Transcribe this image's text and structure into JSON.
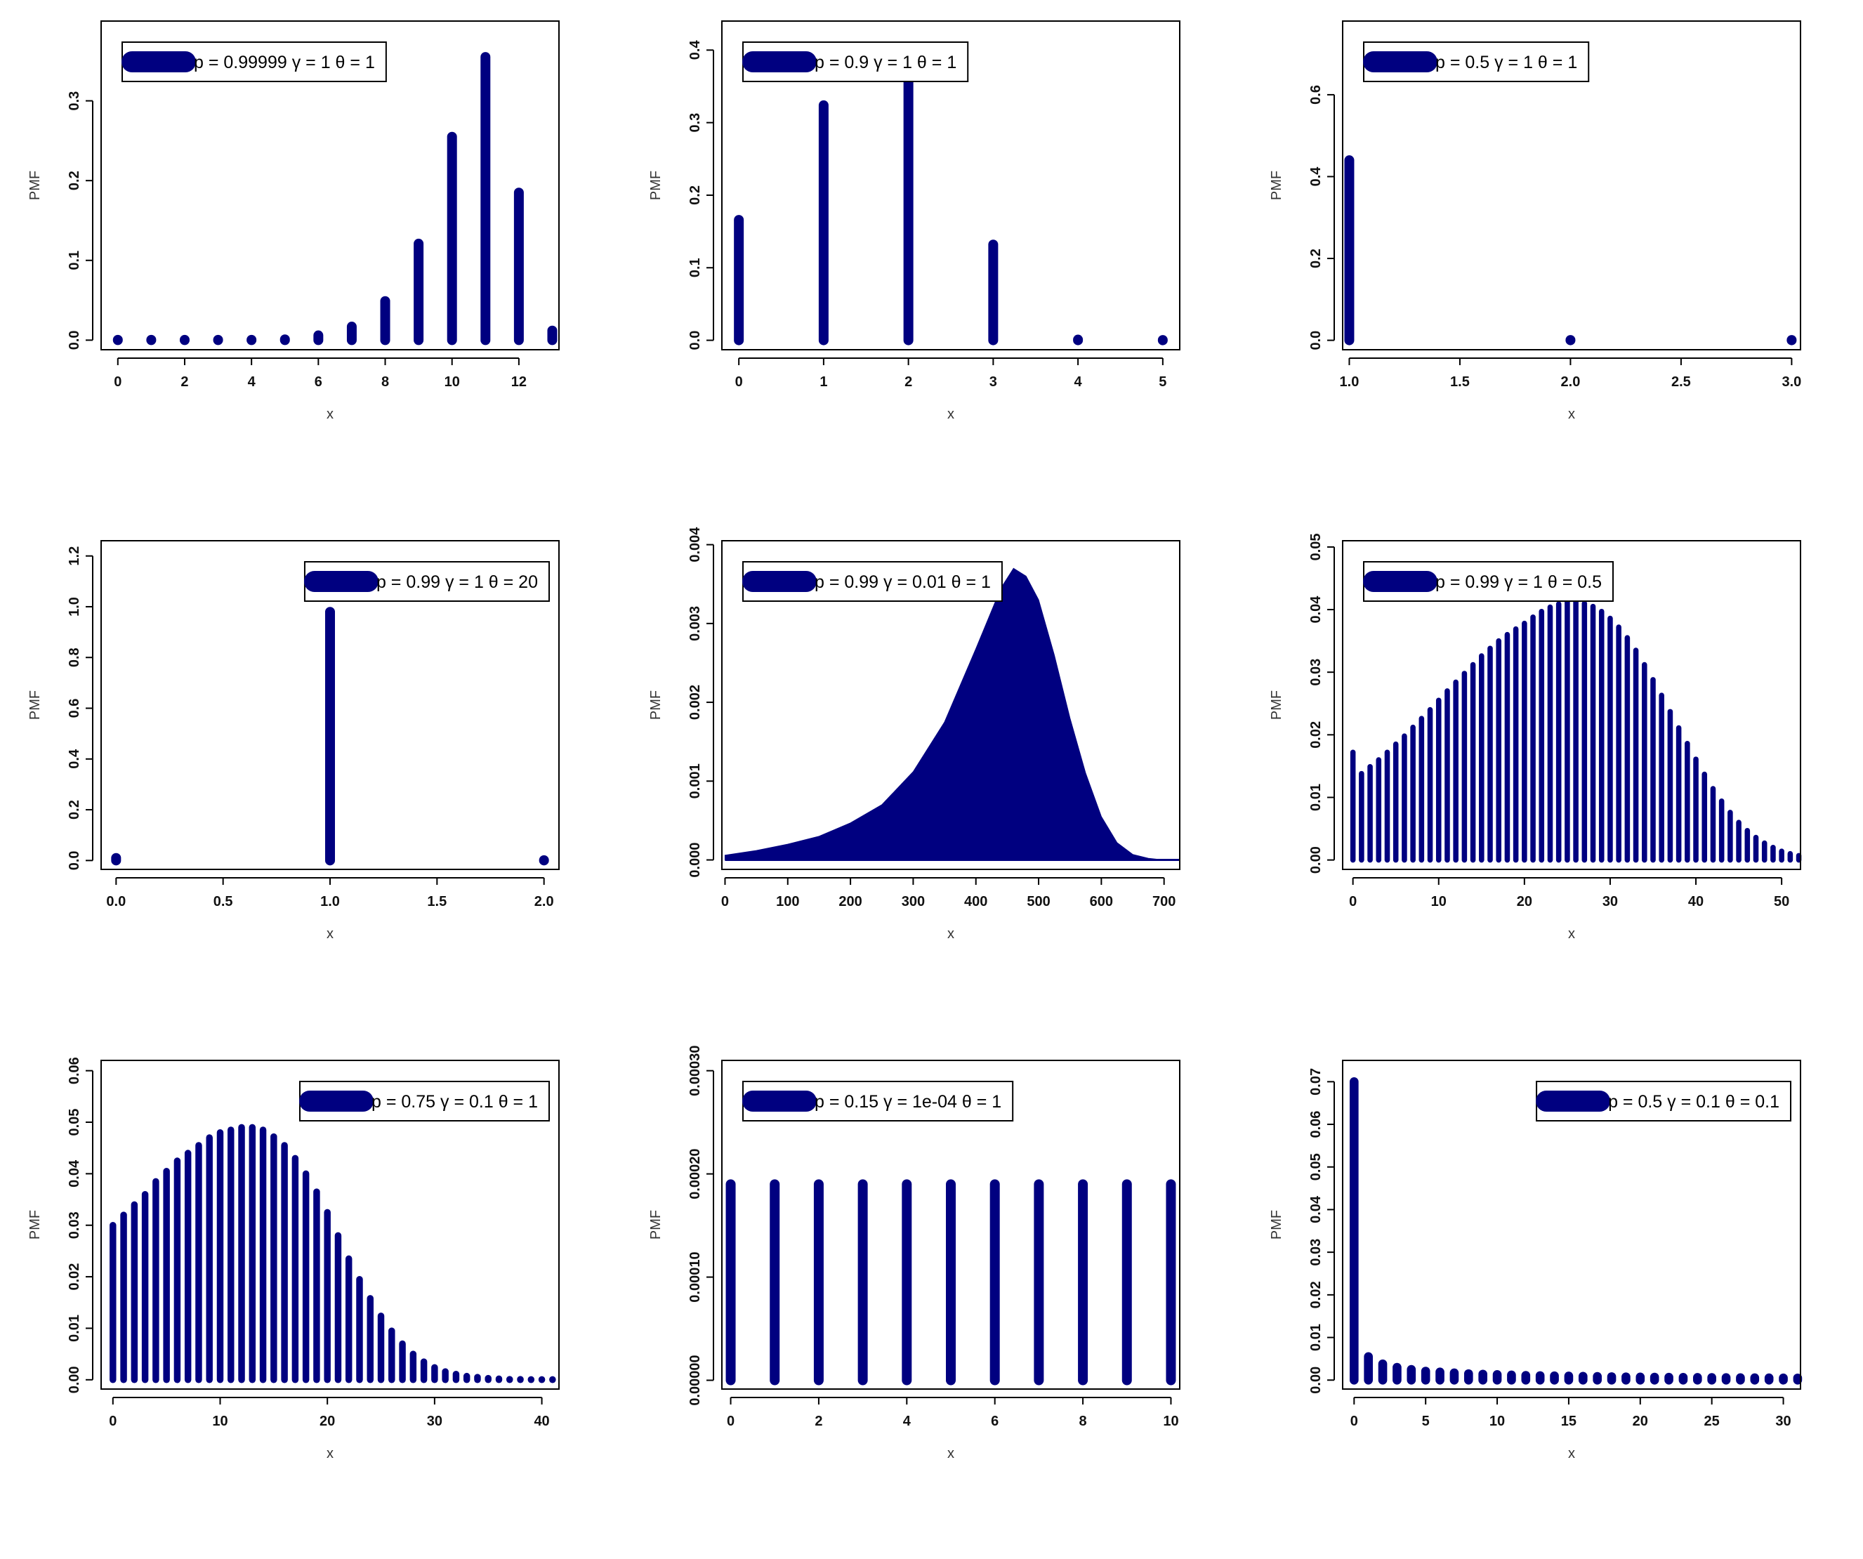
{
  "figure": {
    "series_color": "#000080",
    "layout": "3x3 grid of probability mass function plots"
  },
  "chart_data": [
    {
      "type": "bar",
      "style": "lollipop",
      "legend": "p = 0.99999  γ = 1  θ = 1",
      "legend_position": "top-left",
      "xlabel": "x",
      "ylabel": "PMF",
      "xlim": [
        -0.5,
        13.2
      ],
      "ylim": [
        -0.012,
        0.4
      ],
      "xticks": [
        0,
        2,
        4,
        6,
        8,
        10,
        12
      ],
      "xtick_labels": [
        "0",
        "2",
        "4",
        "6",
        "8",
        "10",
        "12"
      ],
      "yticks": [
        0.0,
        0.1,
        0.2,
        0.3
      ],
      "ytick_labels": [
        "0.0",
        "0.1",
        "0.2",
        "0.3"
      ],
      "x": [
        0,
        1,
        2,
        3,
        4,
        5,
        6,
        7,
        8,
        9,
        10,
        11,
        12,
        13
      ],
      "y": [
        0,
        0,
        0,
        0,
        0,
        0.001,
        0.006,
        0.017,
        0.049,
        0.121,
        0.255,
        0.355,
        0.185,
        0.012
      ]
    },
    {
      "type": "bar",
      "style": "lollipop",
      "legend": "p = 0.9  γ = 1  θ = 1",
      "legend_position": "top-left",
      "xlabel": "x",
      "ylabel": "PMF",
      "xlim": [
        -0.2,
        5.2
      ],
      "ylim": [
        -0.013,
        0.44
      ],
      "xticks": [
        0,
        1,
        2,
        3,
        4,
        5
      ],
      "xtick_labels": [
        "0",
        "1",
        "2",
        "3",
        "4",
        "5"
      ],
      "yticks": [
        0.0,
        0.1,
        0.2,
        0.3,
        0.4
      ],
      "ytick_labels": [
        "0.0",
        "0.1",
        "0.2",
        "0.3",
        "0.4"
      ],
      "x": [
        0,
        1,
        2,
        3,
        4,
        5
      ],
      "y": [
        0.166,
        0.324,
        0.378,
        0.132,
        0.001,
        0.0
      ]
    },
    {
      "type": "bar",
      "style": "lollipop",
      "legend": "p = 0.5  γ = 1  θ = 1",
      "legend_position": "top-left",
      "xlabel": "x",
      "ylabel": "PMF",
      "xlim": [
        0.97,
        3.04
      ],
      "ylim": [
        -0.023,
        0.78
      ],
      "xticks": [
        1.0,
        1.5,
        2.0,
        2.5,
        3.0
      ],
      "xtick_labels": [
        "1.0",
        "1.5",
        "2.0",
        "2.5",
        "3.0"
      ],
      "yticks": [
        0.0,
        0.2,
        0.4,
        0.6
      ],
      "ytick_labels": [
        "0.0",
        "0.2",
        "0.4",
        "0.6"
      ],
      "x": [
        1,
        2,
        3
      ],
      "y": [
        0.44,
        0.0,
        0.0
      ]
    },
    {
      "type": "bar",
      "style": "lollipop",
      "legend": "p = 0.99  γ = 1  θ = 20",
      "legend_position": "top-right",
      "xlabel": "x",
      "ylabel": "PMF",
      "xlim": [
        -0.07,
        2.07
      ],
      "ylim": [
        -0.035,
        1.26
      ],
      "xticks": [
        0.0,
        0.5,
        1.0,
        1.5,
        2.0
      ],
      "xtick_labels": [
        "0.0",
        "0.5",
        "1.0",
        "1.5",
        "2.0"
      ],
      "yticks": [
        0.0,
        0.2,
        0.4,
        0.6,
        0.8,
        1.0,
        1.2
      ],
      "ytick_labels": [
        "0.0",
        "0.2",
        "0.4",
        "0.6",
        "0.8",
        "1.0",
        "1.2"
      ],
      "x": [
        0,
        1,
        2
      ],
      "y": [
        0.01,
        0.98,
        0.0
      ]
    },
    {
      "type": "area",
      "style": "dense-bars",
      "legend": "p = 0.99  γ = 0.01  θ = 1",
      "legend_position": "top-left",
      "xlabel": "x",
      "ylabel": "PMF",
      "xlim": [
        -5,
        725
      ],
      "ylim": [
        -0.00012,
        0.00405
      ],
      "xticks": [
        0,
        100,
        200,
        300,
        400,
        500,
        600,
        700
      ],
      "xtick_labels": [
        "0",
        "100",
        "200",
        "300",
        "400",
        "500",
        "600",
        "700"
      ],
      "yticks": [
        0.0,
        0.001,
        0.002,
        0.003,
        0.004
      ],
      "ytick_labels": [
        "0.000",
        "0.001",
        "0.002",
        "0.003",
        "0.004"
      ],
      "x": [
        0,
        50,
        100,
        150,
        200,
        250,
        300,
        350,
        400,
        440,
        460,
        480,
        500,
        525,
        550,
        575,
        600,
        625,
        650,
        675,
        700,
        725
      ],
      "y": [
        6e-05,
        0.00012,
        0.0002,
        0.0003,
        0.00047,
        0.0007,
        0.00112,
        0.00175,
        0.00268,
        0.00345,
        0.0037,
        0.0036,
        0.0033,
        0.0026,
        0.0018,
        0.0011,
        0.00055,
        0.00022,
        7e-05,
        2e-05,
        0.0,
        0.0
      ]
    },
    {
      "type": "bar",
      "style": "lollipop",
      "legend": "p = 0.99  γ = 1  θ = 0.5",
      "legend_position": "top-left",
      "xlabel": "x",
      "ylabel": "PMF",
      "xlim": [
        -1.2,
        52.2
      ],
      "ylim": [
        -0.0015,
        0.051
      ],
      "xticks": [
        0,
        10,
        20,
        30,
        40,
        50
      ],
      "xtick_labels": [
        "0",
        "10",
        "20",
        "30",
        "40",
        "50"
      ],
      "yticks": [
        0.0,
        0.01,
        0.02,
        0.03,
        0.04,
        0.05
      ],
      "ytick_labels": [
        "0.00",
        "0.01",
        "0.02",
        "0.03",
        "0.04",
        "0.05"
      ],
      "x": [
        0,
        1,
        2,
        3,
        4,
        5,
        6,
        7,
        8,
        9,
        10,
        11,
        12,
        13,
        14,
        15,
        16,
        17,
        18,
        19,
        20,
        21,
        22,
        23,
        24,
        25,
        26,
        27,
        28,
        29,
        30,
        31,
        32,
        33,
        34,
        35,
        36,
        37,
        38,
        39,
        40,
        41,
        42,
        43,
        44,
        45,
        46,
        47,
        48,
        49,
        50,
        51,
        52
      ],
      "y": [
        0.0172,
        0.0138,
        0.0149,
        0.016,
        0.0172,
        0.0185,
        0.0198,
        0.0212,
        0.0226,
        0.024,
        0.0255,
        0.027,
        0.0284,
        0.0298,
        0.0312,
        0.0326,
        0.0338,
        0.035,
        0.036,
        0.0369,
        0.0378,
        0.0388,
        0.0397,
        0.0404,
        0.0409,
        0.0412,
        0.0412,
        0.041,
        0.0405,
        0.0397,
        0.0386,
        0.0372,
        0.0355,
        0.0335,
        0.0312,
        0.0288,
        0.0263,
        0.0237,
        0.0211,
        0.0186,
        0.0161,
        0.0137,
        0.0114,
        0.0094,
        0.0076,
        0.006,
        0.0047,
        0.0036,
        0.0027,
        0.002,
        0.0014,
        0.001,
        0.0007
      ]
    },
    {
      "type": "bar",
      "style": "lollipop",
      "legend": "p = 0.75  γ = 0.1  θ = 1",
      "legend_position": "top-right",
      "xlabel": "x",
      "ylabel": "PMF",
      "xlim": [
        -1.1,
        41.6
      ],
      "ylim": [
        -0.0018,
        0.062
      ],
      "xticks": [
        0,
        10,
        20,
        30,
        40
      ],
      "xtick_labels": [
        "0",
        "10",
        "20",
        "30",
        "40"
      ],
      "yticks": [
        0.0,
        0.01,
        0.02,
        0.03,
        0.04,
        0.05,
        0.06
      ],
      "ytick_labels": [
        "0.00",
        "0.01",
        "0.02",
        "0.03",
        "0.04",
        "0.05",
        "0.06"
      ],
      "x": [
        0,
        1,
        2,
        3,
        4,
        5,
        6,
        7,
        8,
        9,
        10,
        11,
        12,
        13,
        14,
        15,
        16,
        17,
        18,
        19,
        20,
        21,
        22,
        23,
        24,
        25,
        26,
        27,
        28,
        29,
        30,
        31,
        32,
        33,
        34,
        35,
        36,
        37,
        38,
        39,
        40,
        41
      ],
      "y": [
        0.03,
        0.032,
        0.034,
        0.036,
        0.0385,
        0.0405,
        0.0425,
        0.044,
        0.0455,
        0.047,
        0.048,
        0.0485,
        0.049,
        0.049,
        0.0485,
        0.0472,
        0.0455,
        0.043,
        0.04,
        0.0365,
        0.0325,
        0.028,
        0.0235,
        0.0195,
        0.0158,
        0.0124,
        0.0095,
        0.007,
        0.005,
        0.0035,
        0.0024,
        0.0016,
        0.0011,
        0.0007,
        0.0005,
        0.0003,
        0.0002,
        0.0001,
        0.0001,
        0.0,
        0.0,
        0.0
      ]
    },
    {
      "type": "bar",
      "style": "lollipop",
      "legend": "p = 0.15  γ = 1e-04  θ = 1",
      "legend_position": "top-left",
      "xlabel": "x",
      "ylabel": "PMF",
      "xlim": [
        -0.2,
        10.2
      ],
      "ylim": [
        -8.5e-06,
        0.00031
      ],
      "xticks": [
        0,
        2,
        4,
        6,
        8,
        10
      ],
      "xtick_labels": [
        "0",
        "2",
        "4",
        "6",
        "8",
        "10"
      ],
      "yticks": [
        0.0,
        0.0001,
        0.0002,
        0.0003
      ],
      "ytick_labels": [
        "0.00000",
        "0.00010",
        "0.00020",
        "0.00030"
      ],
      "x": [
        0,
        1,
        2,
        3,
        4,
        5,
        6,
        7,
        8,
        9,
        10
      ],
      "y": [
        0.00019,
        0.00019,
        0.00019,
        0.00019,
        0.00019,
        0.00019,
        0.00019,
        0.00019,
        0.00019,
        0.00019,
        0.00019
      ]
    },
    {
      "type": "bar",
      "style": "lollipop",
      "legend": "p = 0.5  γ = 0.1  θ = 0.1",
      "legend_position": "top-right",
      "xlabel": "x",
      "ylabel": "PMF",
      "xlim": [
        -0.8,
        31.2
      ],
      "ylim": [
        -0.0021,
        0.075
      ],
      "xticks": [
        0,
        5,
        10,
        15,
        20,
        25,
        30
      ],
      "xtick_labels": [
        "0",
        "5",
        "10",
        "15",
        "20",
        "25",
        "30"
      ],
      "yticks": [
        0.0,
        0.01,
        0.02,
        0.03,
        0.04,
        0.05,
        0.06,
        0.07
      ],
      "ytick_labels": [
        "0.00",
        "0.01",
        "0.02",
        "0.03",
        "0.04",
        "0.05",
        "0.06",
        "0.07"
      ],
      "x": [
        0,
        1,
        2,
        3,
        4,
        5,
        6,
        7,
        8,
        9,
        10,
        11,
        12,
        13,
        14,
        15,
        16,
        17,
        18,
        19,
        20,
        21,
        22,
        23,
        24,
        25,
        26,
        27,
        28,
        29,
        30,
        31
      ],
      "y": [
        0.07,
        0.0055,
        0.0038,
        0.003,
        0.0025,
        0.0021,
        0.0019,
        0.0017,
        0.0015,
        0.0014,
        0.0013,
        0.0012,
        0.0011,
        0.00105,
        0.001,
        0.00095,
        0.0009,
        0.00085,
        0.0008,
        0.00076,
        0.00073,
        0.0007,
        0.00067,
        0.00064,
        0.00062,
        0.0006,
        0.00058,
        0.00056,
        0.00054,
        0.00052,
        0.0005,
        0.00049
      ]
    }
  ]
}
